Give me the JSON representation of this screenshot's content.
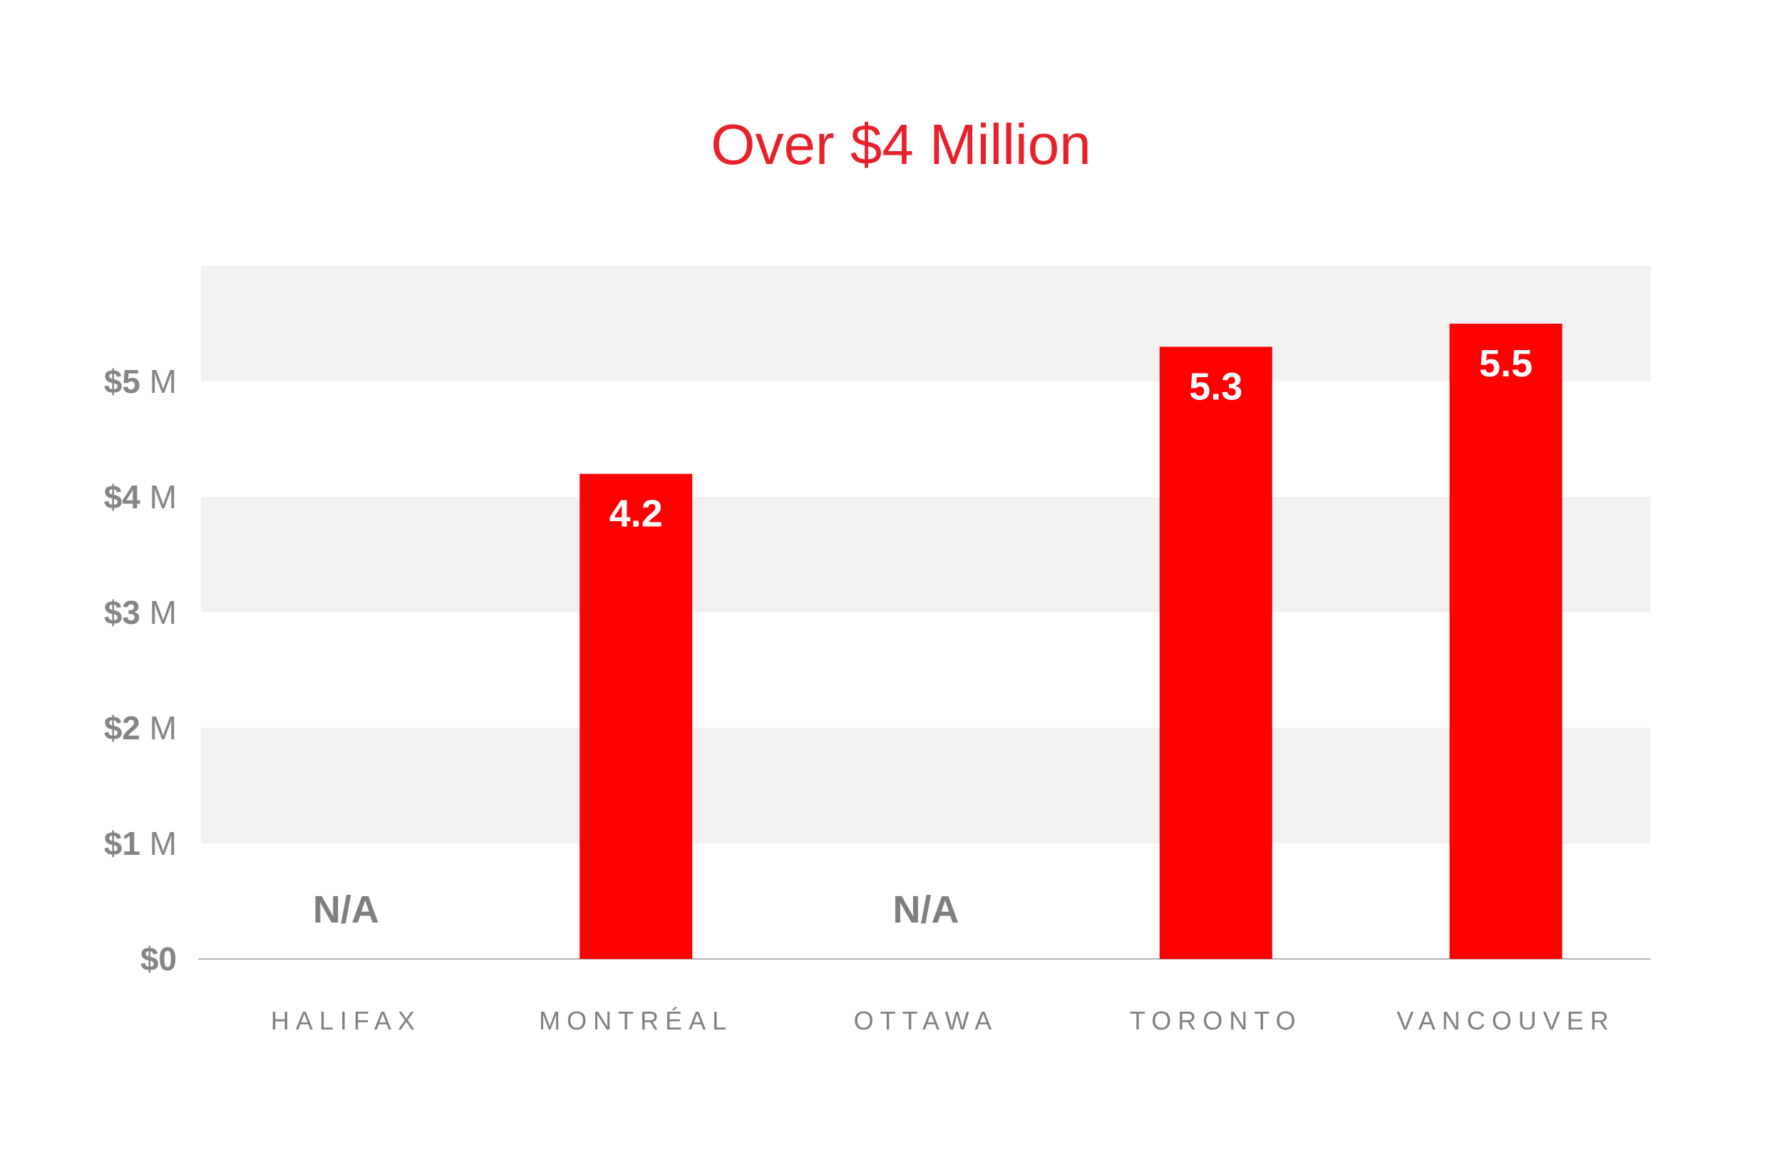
{
  "chart_data": {
    "type": "bar",
    "title": "Over $4 Million",
    "categories": [
      "HALIFAX",
      "MONTRÉAL",
      "OTTAWA",
      "TORONTO",
      "VANCOUVER"
    ],
    "values": [
      null,
      4.2,
      null,
      5.3,
      5.5
    ],
    "data_labels": [
      "N/A",
      "4.2",
      "N/A",
      "5.3",
      "5.5"
    ],
    "ylim": [
      0,
      6
    ],
    "y_ticks": [
      {
        "value": 0,
        "num": "$0",
        "unit": ""
      },
      {
        "value": 1,
        "num": "$1",
        "unit": " M"
      },
      {
        "value": 2,
        "num": "$2",
        "unit": " M"
      },
      {
        "value": 3,
        "num": "$3",
        "unit": " M"
      },
      {
        "value": 4,
        "num": "$4",
        "unit": " M"
      },
      {
        "value": 5,
        "num": "$5",
        "unit": " M"
      }
    ],
    "xlabel": "",
    "ylabel": "",
    "grid": "alternating horizontal bands",
    "colors": {
      "bar": "#ff0000",
      "title": "#e8202a",
      "band": "#f1f1f1",
      "tick_text": "#858585",
      "category_text": "#808080",
      "na_text": "#7f7f7f",
      "value_label": "#ffffff",
      "axis": "#b3b3b3"
    }
  }
}
